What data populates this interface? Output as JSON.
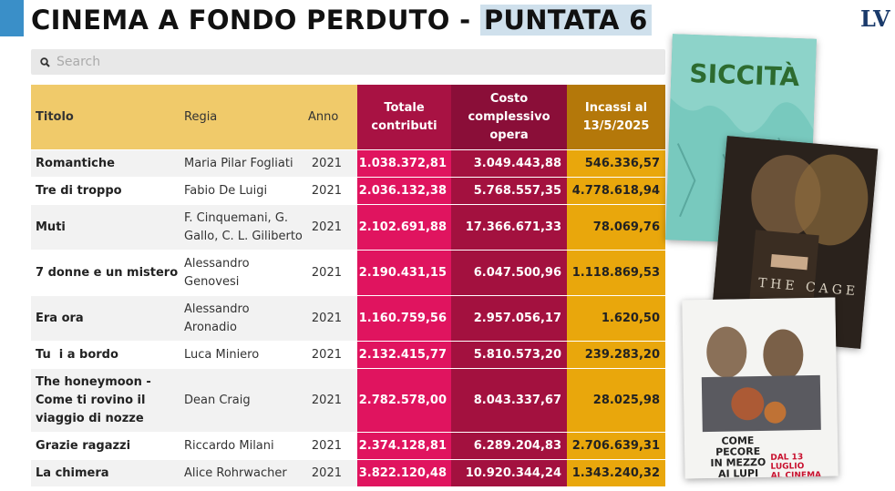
{
  "header": {
    "title_main": "CINEMA A FONDO PERDUTO - ",
    "title_highlight": "PUNTATA 6",
    "logo": "LV"
  },
  "search": {
    "placeholder": "Search"
  },
  "table": {
    "headers": [
      "Titolo",
      "Regia",
      "Anno",
      "Totale\ncontributi",
      "Costo\ncomplessivo\nopera",
      "Incassi al\n13/5/2025"
    ],
    "rows": [
      [
        "Romantiche",
        "Maria Pilar Fogliati",
        "2021",
        "1.038.372,81",
        "3.049.443,88",
        "546.336,57"
      ],
      [
        "Tre di troppo",
        "Fabio De Luigi",
        "2021",
        "2.036.132,38",
        "5.768.557,35",
        "4.778.618,94"
      ],
      [
        "Muti",
        "F. Cinquemani, G. Gallo, C. L. Giliberto",
        "2021",
        "2.102.691,88",
        "17.366.671,33",
        "78.069,76"
      ],
      [
        "7 donne e un mistero",
        "Alessandro Genovesi",
        "2021",
        "2.190.431,15",
        "6.047.500,96",
        "1.118.869,53"
      ],
      [
        "Era ora",
        "Alessandro Aronadio",
        "2021",
        "1.160.759,56",
        "2.957.056,17",
        "1.620,50"
      ],
      [
        "Tu  i a bordo",
        "Luca Miniero",
        "2021",
        "2.132.415,77",
        "5.810.573,20",
        "239.283,20"
      ],
      [
        "The honeymoon - Come ti rovino il viaggio di nozze",
        "Dean Craig",
        "2021",
        "2.782.578,00",
        "8.043.337,67",
        "28.025,98"
      ],
      [
        "Grazie ragazzi",
        "Riccardo Milani",
        "2021",
        "2.374.128,81",
        "6.289.204,83",
        "2.706.639,31"
      ],
      [
        "La chimera",
        "Alice Rohrwacher",
        "2021",
        "3.822.120,48",
        "10.920.344,24",
        "1.343.240,32"
      ]
    ]
  },
  "posters": {
    "poster1_title": "SICCITÀ",
    "poster2_title": "THE CAGE",
    "poster3_title": "COME\nPECORE\nIN MEZZO\nAI LUPI",
    "poster3_date": "DAL 13 LUGLIO\nAL CINEMA"
  },
  "colors": {
    "accent_blue": "#3a8fc8",
    "header_yellow": "#f0ca6a",
    "contributi": "#e0145f",
    "costo": "#a3113f",
    "incassi": "#e9a70c"
  }
}
